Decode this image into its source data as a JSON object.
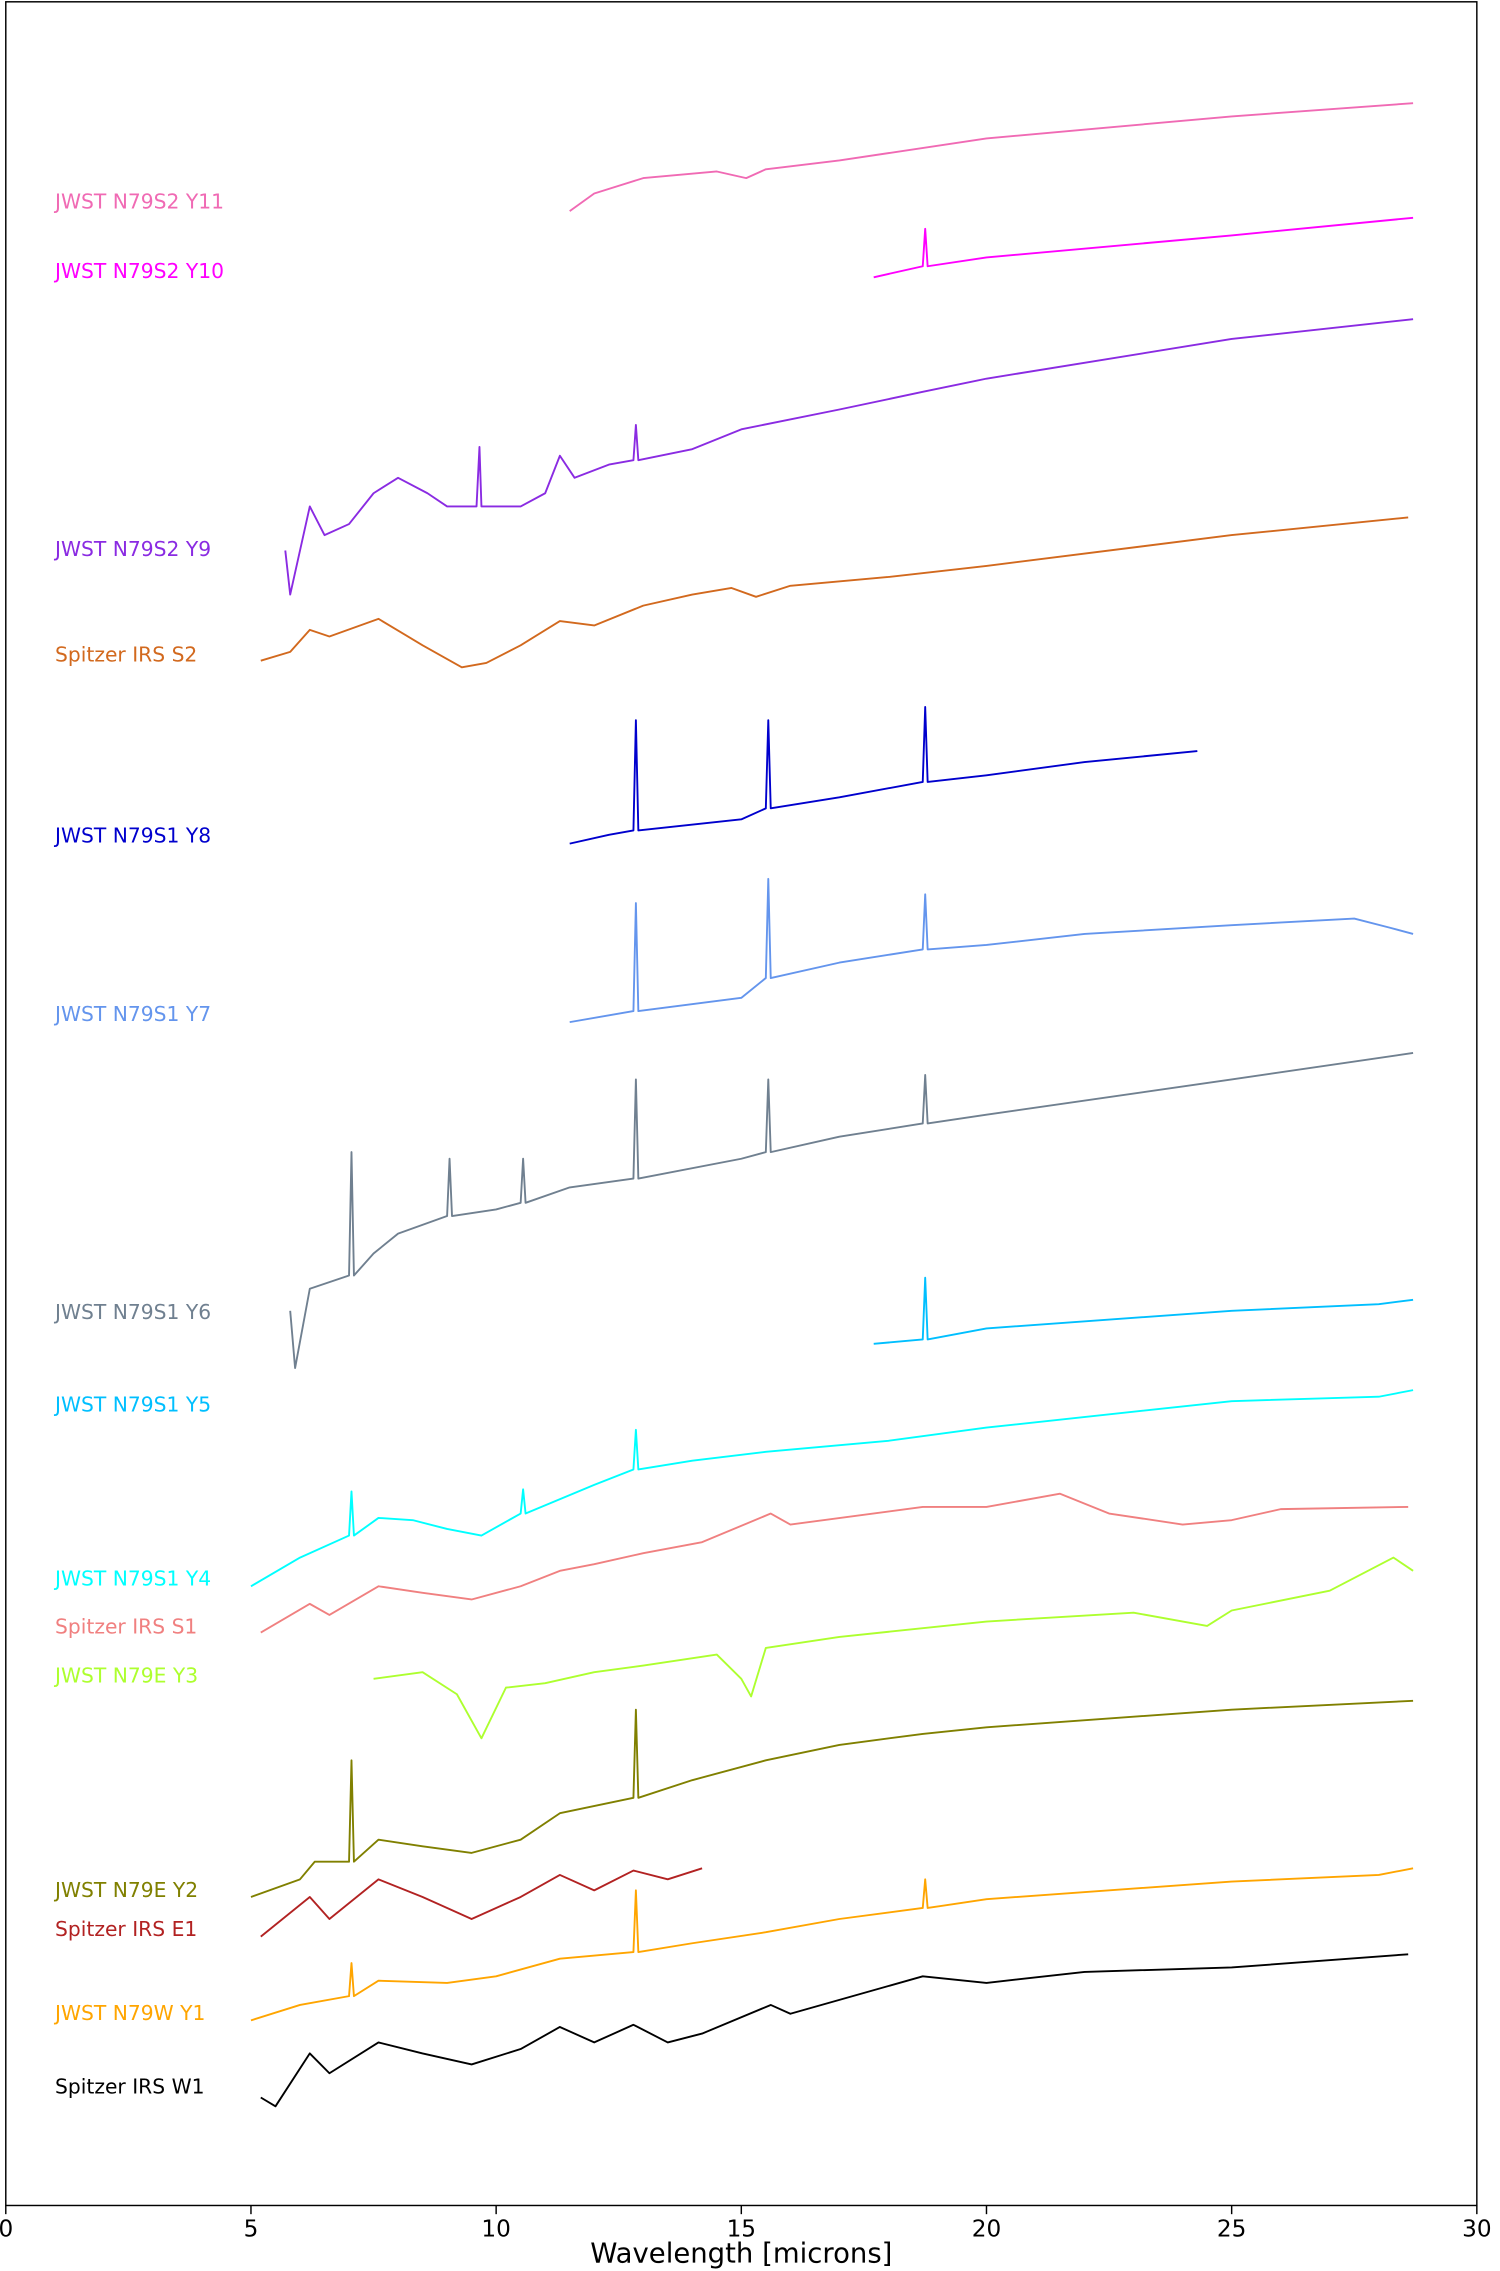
{
  "chart_data": {
    "type": "line",
    "xlabel": "Wavelength [microns]",
    "xlim": [
      0,
      30
    ],
    "xticks": [
      0,
      5,
      10,
      15,
      20,
      25,
      30
    ],
    "ylim": [
      0,
      100
    ],
    "series": [
      {
        "name": "JWST N79S2 Y11",
        "color": "#f06ab4",
        "x": [
          11.5,
          12,
          13,
          14.5,
          15.1,
          15.5,
          17,
          20,
          25,
          28.7
        ],
        "values": [
          90.5,
          91.3,
          92.0,
          92.3,
          92.0,
          92.4,
          92.8,
          93.8,
          94.8,
          95.4
        ]
      },
      {
        "name": "JWST N79S2 Y10",
        "color": "#ff00ff",
        "x": [
          17.7,
          18.7,
          18.75,
          18.8,
          20,
          25,
          28.7
        ],
        "values": [
          87.5,
          88.0,
          89.7,
          88.0,
          88.4,
          89.4,
          90.2
        ]
      },
      {
        "name": "JWST N79S2 Y9",
        "color": "#8a2be2",
        "x": [
          5.7,
          5.8,
          6.2,
          6.5,
          7,
          7.5,
          8,
          8.6,
          9,
          9.6,
          9.66,
          9.7,
          10.5,
          11,
          11.3,
          11.6,
          12.3,
          12.8,
          12.85,
          12.9,
          14,
          15,
          17,
          18.7,
          20,
          25,
          28.7
        ],
        "values": [
          75.1,
          73.1,
          77.1,
          75.8,
          76.3,
          77.7,
          78.4,
          77.7,
          77.1,
          77.1,
          79.8,
          77.1,
          77.1,
          77.7,
          79.4,
          78.4,
          79.0,
          79.2,
          80.8,
          79.2,
          79.7,
          80.6,
          81.5,
          82.3,
          82.9,
          84.7,
          85.6
        ]
      },
      {
        "name": "Spitzer IRS S2",
        "color": "#d2691e",
        "x": [
          5.2,
          5.8,
          6.2,
          6.6,
          7.6,
          8.5,
          9.3,
          9.8,
          10.5,
          11.3,
          12,
          13,
          14,
          14.8,
          15.3,
          16,
          18,
          20,
          25,
          28.6
        ],
        "values": [
          70.1,
          70.5,
          71.5,
          71.2,
          72.0,
          70.8,
          69.8,
          70.0,
          70.8,
          71.9,
          71.7,
          72.6,
          73.1,
          73.4,
          73.0,
          73.5,
          73.9,
          74.4,
          75.8,
          76.6
        ]
      },
      {
        "name": "JWST N79S1 Y8",
        "color": "#0000cd",
        "x": [
          11.5,
          12.3,
          12.8,
          12.85,
          12.9,
          15,
          15.5,
          15.55,
          15.6,
          17,
          18.7,
          18.75,
          18.8,
          20,
          22,
          24.3
        ],
        "values": [
          61.8,
          62.2,
          62.4,
          67.4,
          62.4,
          62.9,
          63.4,
          67.4,
          63.4,
          63.9,
          64.6,
          68.0,
          64.6,
          64.9,
          65.5,
          66.0
        ]
      },
      {
        "name": "JWST N79S1 Y7",
        "color": "#6495ed",
        "x": [
          11.5,
          12.8,
          12.85,
          12.9,
          15,
          15.5,
          15.55,
          15.6,
          17,
          18.7,
          18.75,
          18.8,
          20,
          22,
          25,
          27.5,
          28.2,
          28.7
        ],
        "values": [
          53.7,
          54.2,
          59.1,
          54.2,
          54.8,
          55.7,
          60.2,
          55.7,
          56.4,
          57.0,
          59.5,
          57.0,
          57.2,
          57.7,
          58.1,
          58.4,
          58.0,
          57.7
        ]
      },
      {
        "name": "JWST N79S1 Y6",
        "color": "#708090",
        "x": [
          5.8,
          5.9,
          6.2,
          7,
          7.05,
          7.1,
          7.5,
          8,
          9,
          9.05,
          9.1,
          10,
          10.5,
          10.55,
          10.6,
          11.5,
          12.8,
          12.85,
          12.9,
          15,
          15.5,
          15.55,
          15.6,
          17,
          18.7,
          18.75,
          18.8,
          20,
          25,
          28.7
        ],
        "values": [
          40.6,
          38.0,
          41.6,
          42.2,
          47.8,
          42.2,
          43.2,
          44.1,
          44.9,
          47.5,
          44.9,
          45.2,
          45.5,
          47.5,
          45.5,
          46.2,
          46.6,
          51.1,
          46.6,
          47.5,
          47.8,
          51.1,
          47.8,
          48.5,
          49.1,
          51.3,
          49.1,
          49.5,
          51.1,
          52.3
        ]
      },
      {
        "name": "JWST N79S1 Y5",
        "color": "#00bfff",
        "x": [
          17.7,
          18.7,
          18.75,
          18.8,
          20,
          25,
          28,
          28.7
        ],
        "values": [
          39.1,
          39.3,
          42.1,
          39.3,
          39.8,
          40.6,
          40.9,
          41.1
        ]
      },
      {
        "name": "JWST N79S1 Y4",
        "color": "#00ffff",
        "x": [
          5,
          6,
          7,
          7.05,
          7.1,
          7.6,
          8.3,
          9,
          9.7,
          10.5,
          10.55,
          10.6,
          12,
          12.8,
          12.85,
          12.9,
          14,
          15.5,
          18,
          20,
          25,
          28,
          28.7
        ],
        "values": [
          28.1,
          29.4,
          30.4,
          32.4,
          30.4,
          31.2,
          31.1,
          30.7,
          30.4,
          31.4,
          32.5,
          31.4,
          32.7,
          33.4,
          35.2,
          33.4,
          33.8,
          34.2,
          34.7,
          35.3,
          36.5,
          36.7,
          37.0
        ]
      },
      {
        "name": "Spitzer IRS S1",
        "color": "#f08080",
        "x": [
          5.2,
          6.2,
          6.6,
          7.6,
          8.5,
          9.5,
          10.5,
          11.3,
          12,
          13,
          14.2,
          15.6,
          16,
          18.7,
          20,
          21.5,
          22.5,
          24,
          25,
          26,
          28.6
        ],
        "values": [
          26.0,
          27.3,
          26.8,
          28.1,
          27.8,
          27.5,
          28.1,
          28.8,
          29.1,
          29.6,
          30.1,
          31.4,
          30.9,
          31.7,
          31.7,
          32.3,
          31.4,
          30.9,
          31.1,
          31.6,
          31.7
        ]
      },
      {
        "name": "JWST N79E Y3",
        "color": "#adff2f",
        "x": [
          7.5,
          8.5,
          9.2,
          9.7,
          10.2,
          11,
          12,
          13,
          14.5,
          15,
          15.2,
          15.5,
          17,
          20,
          23,
          24.5,
          25,
          27,
          28.3,
          28.7
        ],
        "values": [
          23.9,
          24.2,
          23.2,
          21.2,
          23.5,
          23.7,
          24.2,
          24.5,
          25.0,
          23.9,
          23.1,
          25.3,
          25.8,
          26.5,
          26.9,
          26.3,
          27.0,
          27.9,
          29.4,
          28.8
        ]
      },
      {
        "name": "JWST N79E Y2",
        "color": "#808000",
        "x": [
          5,
          6,
          6.3,
          7,
          7.05,
          7.1,
          7.6,
          8.5,
          9.5,
          10.5,
          11.3,
          12.8,
          12.85,
          12.9,
          14,
          15.5,
          17,
          18.7,
          20,
          25,
          28.7
        ],
        "values": [
          14.0,
          14.8,
          15.6,
          15.6,
          20.2,
          15.6,
          16.6,
          16.3,
          16.0,
          16.6,
          17.8,
          18.5,
          22.5,
          18.5,
          19.3,
          20.2,
          20.9,
          21.4,
          21.7,
          22.5,
          22.9
        ]
      },
      {
        "name": "Spitzer IRS E1",
        "color": "#b22222",
        "x": [
          5.2,
          6.2,
          6.6,
          7.6,
          8.5,
          9.5,
          10.5,
          11.3,
          12,
          12.8,
          13.5,
          14.2
        ],
        "values": [
          12.2,
          14.0,
          13.0,
          14.8,
          14.0,
          13.0,
          14.0,
          15.0,
          14.3,
          15.2,
          14.8,
          15.3
        ]
      },
      {
        "name": "JWST N79W Y1",
        "color": "#ffa500",
        "x": [
          5,
          6,
          7,
          7.05,
          7.1,
          7.6,
          9,
          10,
          11.3,
          12.8,
          12.85,
          12.9,
          14,
          15.5,
          17,
          18.7,
          18.75,
          18.8,
          20,
          25,
          28,
          28.7
        ],
        "values": [
          8.4,
          9.1,
          9.5,
          11.0,
          9.5,
          10.2,
          10.1,
          10.4,
          11.2,
          11.5,
          14.3,
          11.5,
          11.9,
          12.4,
          13.0,
          13.5,
          14.8,
          13.5,
          13.9,
          14.7,
          15.0,
          15.3
        ]
      },
      {
        "name": "Spitzer IRS W1",
        "color": "#000000",
        "x": [
          5.2,
          5.5,
          6.2,
          6.6,
          7.6,
          8.5,
          9.5,
          10.5,
          11.3,
          12,
          12.8,
          13.5,
          14.2,
          15.6,
          16,
          18.7,
          20,
          22,
          25,
          28.6
        ],
        "values": [
          4.9,
          4.5,
          6.9,
          6.0,
          7.4,
          6.9,
          6.4,
          7.1,
          8.1,
          7.4,
          8.2,
          7.4,
          7.8,
          9.1,
          8.7,
          10.4,
          10.1,
          10.6,
          10.8,
          11.4
        ]
      }
    ]
  }
}
